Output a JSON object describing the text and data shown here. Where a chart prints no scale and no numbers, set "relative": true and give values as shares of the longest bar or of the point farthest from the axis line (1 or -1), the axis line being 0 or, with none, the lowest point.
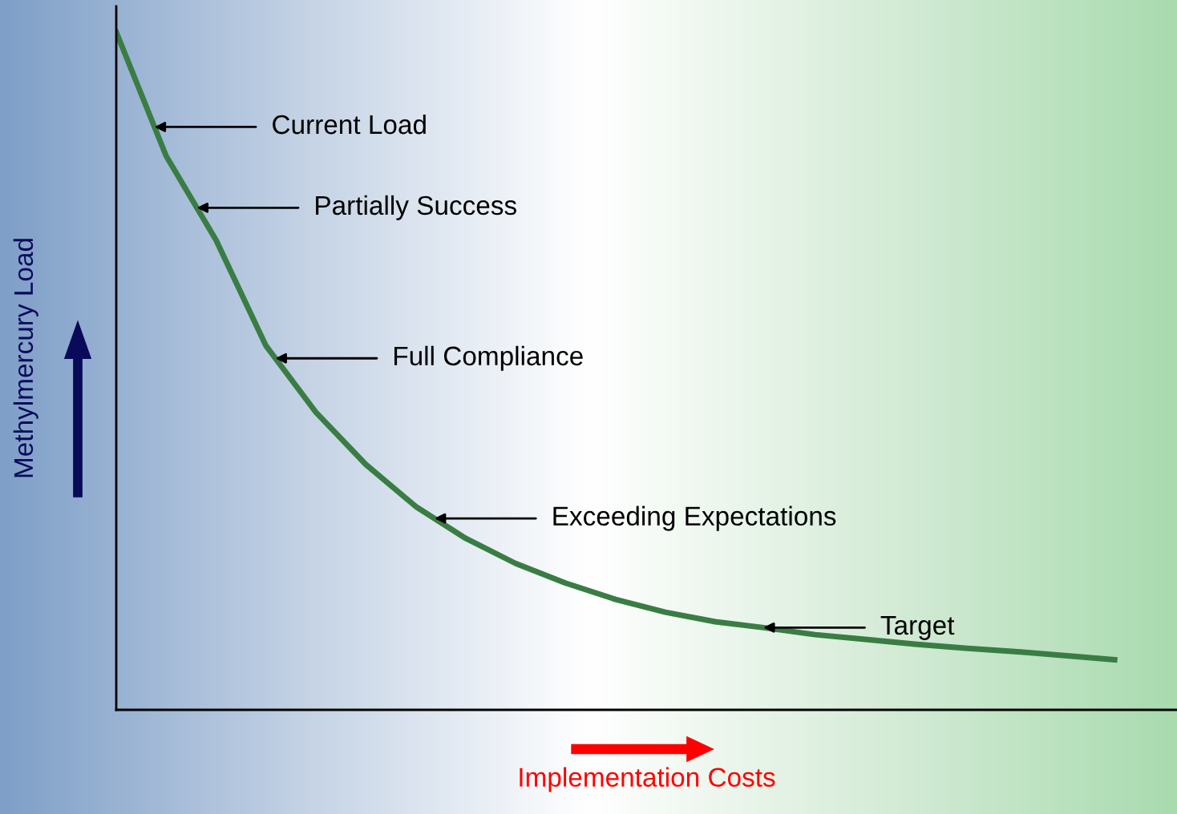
{
  "chart_data": {
    "type": "line",
    "relative": true,
    "xlabel": "Implementation Costs",
    "ylabel": "Methylmercury Load",
    "categories": [
      null,
      null,
      null,
      null,
      null,
      null,
      null,
      null,
      null,
      null,
      null,
      null,
      null,
      null,
      null,
      null,
      null,
      null,
      null,
      null,
      null,
      null
    ],
    "series": [
      {
        "color": "#3a7d44",
        "values": [
          1.0,
          0.817,
          0.693,
          0.537,
          0.439,
          0.362,
          0.3,
          0.253,
          0.216,
          0.187,
          0.163,
          0.144,
          0.13,
          0.121,
          0.111,
          0.104,
          0.097,
          0.091,
          0.086,
          0.08,
          0.074,
          null
        ]
      }
    ],
    "annotations": [
      "Current Load",
      "Partially Success",
      "Full Compliance",
      "Exceeding Expectations",
      "Target"
    ],
    "grid": false,
    "legend": false,
    "marker": "none",
    "line_style": "solid"
  }
}
